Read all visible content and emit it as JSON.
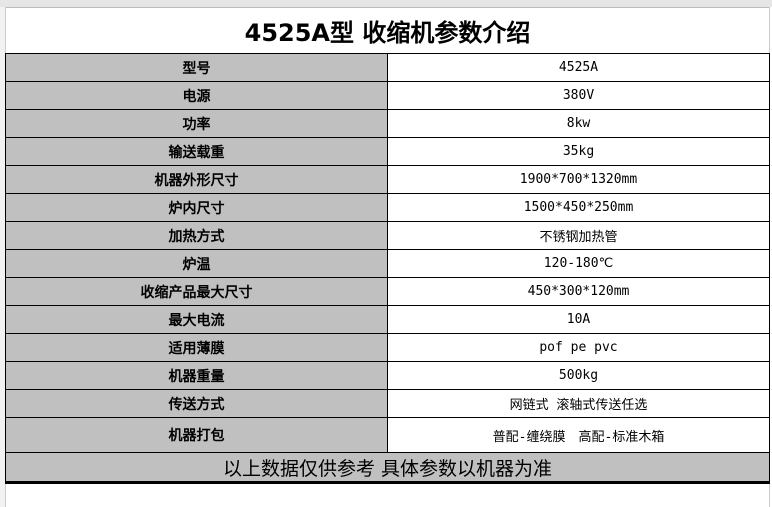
{
  "title": "4525A型 收缩机参数介绍",
  "rows": [
    {
      "label": "型号",
      "value": "4525A"
    },
    {
      "label": "电源",
      "value": "380V"
    },
    {
      "label": "功率",
      "value": "8kw"
    },
    {
      "label": "输送载重",
      "value": "35kg"
    },
    {
      "label": "机器外形尺寸",
      "value": "1900*700*1320mm"
    },
    {
      "label": "炉内尺寸",
      "value": "1500*450*250mm"
    },
    {
      "label": "加热方式",
      "value": "不锈钢加热管"
    },
    {
      "label": "炉温",
      "value": "120-180℃"
    },
    {
      "label": "收缩产品最大尺寸",
      "value": "450*300*120mm"
    },
    {
      "label": "最大电流",
      "value": "10A"
    },
    {
      "label": "适用薄膜",
      "value": "pof pe pvc"
    },
    {
      "label": "机器重量",
      "value": "500kg"
    },
    {
      "label": "传送方式",
      "value": "网链式 滚轴式传送任选"
    },
    {
      "label": "机器打包",
      "value": "普配-缠绕膜　高配-标准木箱"
    }
  ],
  "footer": "以上数据仅供参考 具体参数以机器为准"
}
